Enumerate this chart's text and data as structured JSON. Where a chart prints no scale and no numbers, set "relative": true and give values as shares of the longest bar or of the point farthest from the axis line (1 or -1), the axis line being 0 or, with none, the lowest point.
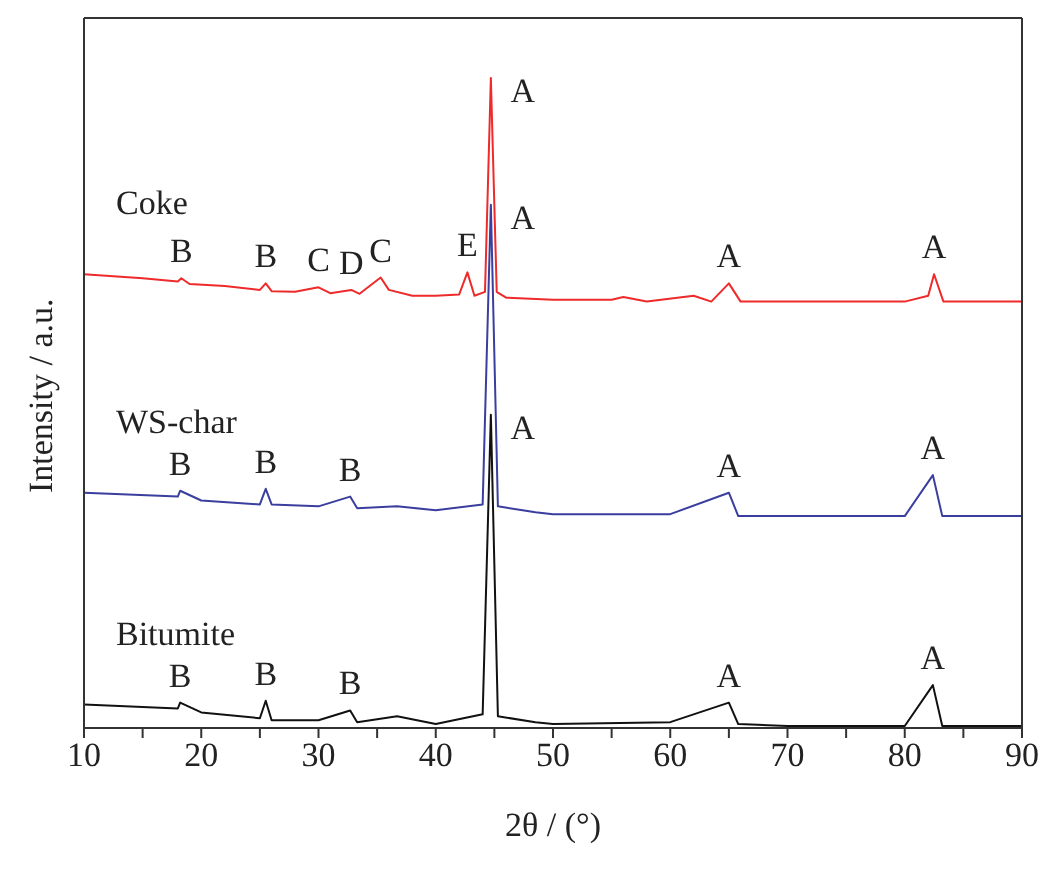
{
  "chart_data": {
    "type": "line",
    "relative": true,
    "xlabel": "2θ / (°)",
    "ylabel": "Intensity / a.u.",
    "xlim": [
      10,
      90
    ],
    "xticks": [
      10,
      {
        "value": 15,
        "label": null
      },
      20,
      {
        "value": 25,
        "label": null
      },
      30,
      {
        "value": 35,
        "label": null
      },
      40,
      {
        "value": 45,
        "label": null
      },
      50,
      {
        "value": 55,
        "label": null
      },
      60,
      {
        "value": 65,
        "label": null
      },
      70,
      {
        "value": 75,
        "label": null
      },
      80,
      {
        "value": 85,
        "label": null
      },
      90
    ],
    "legend": false,
    "grid": false,
    "marker": "none",
    "line_style": "solid",
    "series": [
      {
        "name": "Coke",
        "color": "#ee2a2a",
        "x": [
          10,
          15,
          18,
          18.3,
          19,
          22,
          25,
          25.5,
          26,
          28,
          30,
          31,
          32.8,
          33.5,
          35.3,
          36,
          38,
          40,
          42,
          42.7,
          43.3,
          44.2,
          44.7,
          45.2,
          46,
          50,
          55,
          56,
          58,
          62,
          63.5,
          65,
          66,
          70,
          80,
          82,
          82.5,
          83.3,
          90
        ],
        "values": [
          0.698,
          0.692,
          0.687,
          0.692,
          0.683,
          0.68,
          0.674,
          0.684,
          0.672,
          0.671,
          0.678,
          0.669,
          0.674,
          0.668,
          0.693,
          0.674,
          0.665,
          0.665,
          0.667,
          0.701,
          0.665,
          0.671,
          1.0,
          0.671,
          0.662,
          0.659,
          0.659,
          0.663,
          0.656,
          0.665,
          0.656,
          0.684,
          0.656,
          0.656,
          0.656,
          0.665,
          0.698,
          0.656,
          0.656
        ]
      },
      {
        "name": "WS-char",
        "color": "#3a3e9e",
        "x": [
          10,
          18,
          18.2,
          20,
          25,
          25.5,
          26,
          30,
          32.7,
          33.3,
          36.7,
          40,
          44,
          44.7,
          45.3,
          48.5,
          50,
          60,
          65,
          65.8,
          70,
          80,
          82.4,
          83.2,
          90
        ],
        "values": [
          0.362,
          0.356,
          0.365,
          0.35,
          0.344,
          0.368,
          0.344,
          0.341,
          0.356,
          0.338,
          0.341,
          0.335,
          0.344,
          0.805,
          0.341,
          0.332,
          0.329,
          0.329,
          0.362,
          0.326,
          0.326,
          0.326,
          0.389,
          0.326,
          0.326
        ]
      },
      {
        "name": "Bitumite",
        "color": "#111111",
        "x": [
          10,
          18,
          18.2,
          20,
          25,
          25.5,
          26,
          30,
          32.7,
          33.3,
          36.7,
          40,
          44,
          44.7,
          45.3,
          48.5,
          50,
          60,
          65,
          65.8,
          70,
          80,
          82.4,
          83.2,
          90
        ],
        "values": [
          0.036,
          0.03,
          0.039,
          0.024,
          0.015,
          0.042,
          0.012,
          0.012,
          0.027,
          0.009,
          0.018,
          0.006,
          0.021,
          0.482,
          0.018,
          0.009,
          0.006,
          0.009,
          0.039,
          0.006,
          0.003,
          0.003,
          0.066,
          0.003,
          0.003
        ]
      }
    ],
    "annotations": [
      {
        "text": "B",
        "x": 18.3,
        "y": 0.692
      },
      {
        "text": "B",
        "x": 25.5,
        "y": 0.684
      },
      {
        "text": "C",
        "x": 30,
        "y": 0.678
      },
      {
        "text": "D",
        "x": 32.8,
        "y": 0.674
      },
      {
        "text": "C",
        "x": 35.3,
        "y": 0.693
      },
      {
        "text": "E",
        "x": 42.7,
        "y": 0.701
      },
      {
        "text": "A",
        "x": 44.7,
        "y": 1.0
      },
      {
        "text": "A",
        "x": 65,
        "y": 0.684
      },
      {
        "text": "A",
        "x": 82.5,
        "y": 0.698
      },
      {
        "text": "A",
        "x": 44.7,
        "y": 0.805
      },
      {
        "text": "B",
        "x": 18.2,
        "y": 0.365
      },
      {
        "text": "B",
        "x": 25.5,
        "y": 0.368
      },
      {
        "text": "B",
        "x": 32.7,
        "y": 0.356
      },
      {
        "text": "A",
        "x": 65,
        "y": 0.362
      },
      {
        "text": "A",
        "x": 82.4,
        "y": 0.389
      },
      {
        "text": "A",
        "x": 44.7,
        "y": 0.482
      },
      {
        "text": "B",
        "x": 18.2,
        "y": 0.039
      },
      {
        "text": "B",
        "x": 25.5,
        "y": 0.042
      },
      {
        "text": "B",
        "x": 32.7,
        "y": 0.027
      },
      {
        "text": "A",
        "x": 65,
        "y": 0.039
      },
      {
        "text": "A",
        "x": 82.4,
        "y": 0.066
      }
    ]
  }
}
